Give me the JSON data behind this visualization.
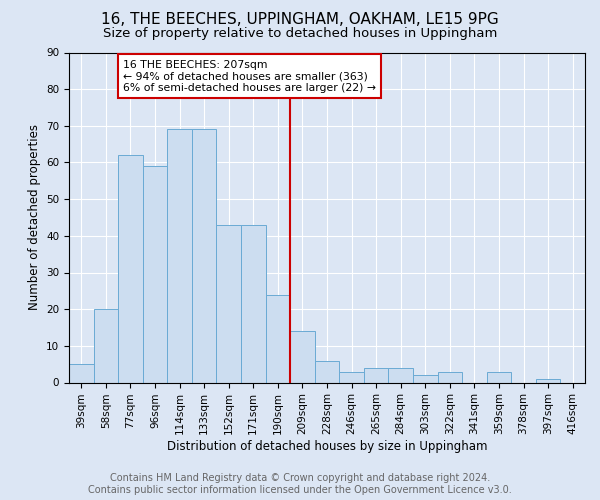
{
  "title": "16, THE BEECHES, UPPINGHAM, OAKHAM, LE15 9PG",
  "subtitle": "Size of property relative to detached houses in Uppingham",
  "xlabel": "Distribution of detached houses by size in Uppingham",
  "ylabel": "Number of detached properties",
  "footer_line1": "Contains HM Land Registry data © Crown copyright and database right 2024.",
  "footer_line2": "Contains public sector information licensed under the Open Government Licence v3.0.",
  "categories": [
    "39sqm",
    "58sqm",
    "77sqm",
    "96sqm",
    "114sqm",
    "133sqm",
    "152sqm",
    "171sqm",
    "190sqm",
    "209sqm",
    "228sqm",
    "246sqm",
    "265sqm",
    "284sqm",
    "303sqm",
    "322sqm",
    "341sqm",
    "359sqm",
    "378sqm",
    "397sqm",
    "416sqm"
  ],
  "values": [
    5,
    20,
    62,
    59,
    69,
    69,
    43,
    43,
    24,
    14,
    6,
    3,
    4,
    4,
    2,
    3,
    0,
    3,
    0,
    1,
    0
  ],
  "bar_color": "#ccddf0",
  "bar_edge_color": "#6aaad4",
  "annotation_text": "16 THE BEECHES: 207sqm\n← 94% of detached houses are smaller (363)\n6% of semi-detached houses are larger (22) →",
  "vline_x_index": 9.0,
  "vline_color": "#cc0000",
  "annotation_box_color": "#cc0000",
  "ylim": [
    0,
    90
  ],
  "yticks": [
    0,
    10,
    20,
    30,
    40,
    50,
    60,
    70,
    80,
    90
  ],
  "background_color": "#dce6f4",
  "title_fontsize": 11,
  "subtitle_fontsize": 9.5,
  "axis_label_fontsize": 8.5,
  "tick_fontsize": 7.5,
  "footer_fontsize": 7.0
}
